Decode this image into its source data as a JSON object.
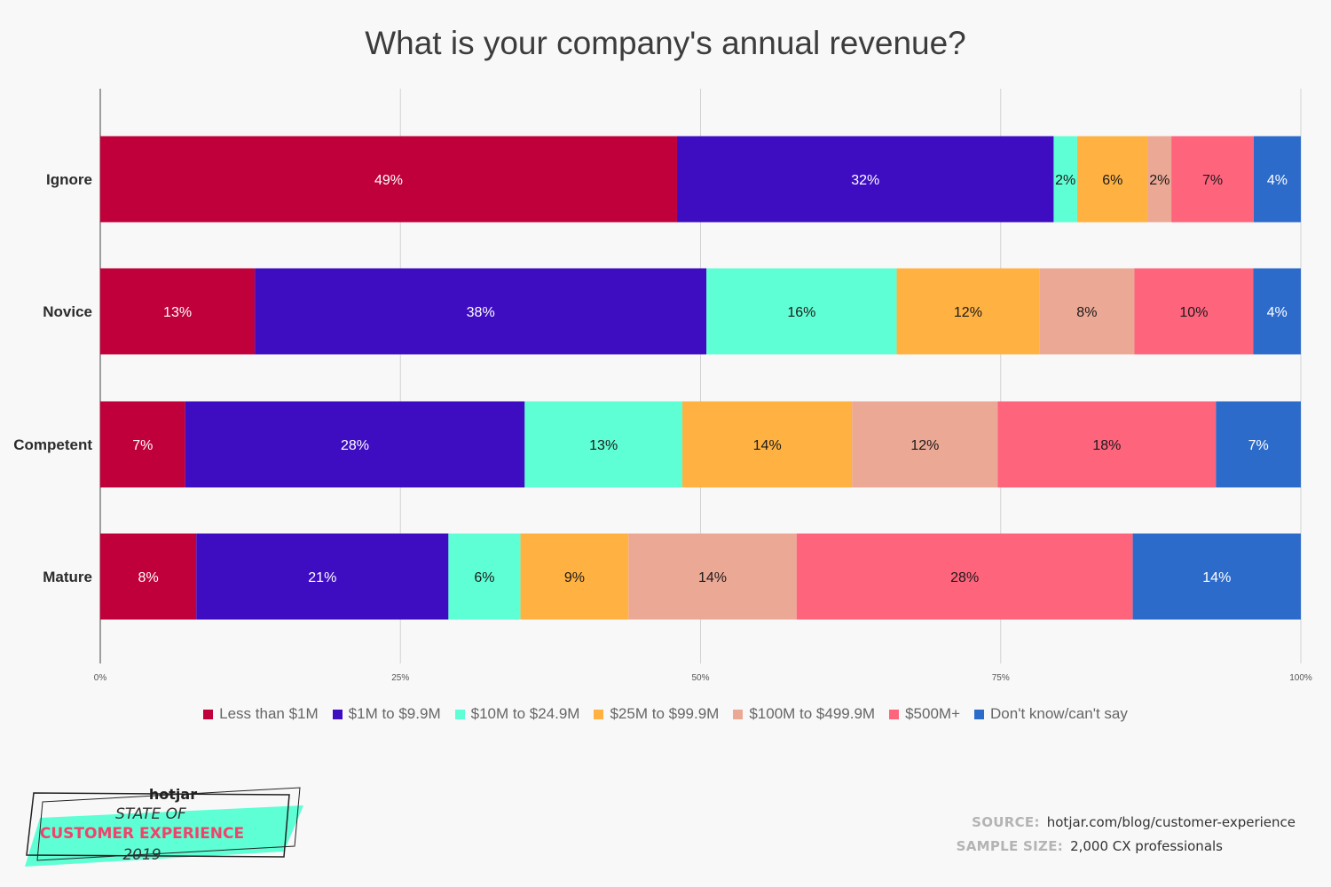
{
  "chart_data": {
    "type": "bar",
    "orientation": "horizontal",
    "stacked": true,
    "title": "What is your company's annual revenue?",
    "categories": [
      "Ignore",
      "Novice",
      "Competent",
      "Mature"
    ],
    "series": [
      {
        "name": "Less than $1M",
        "color": "#c0003a",
        "values": [
          49,
          13,
          7,
          8
        ],
        "labels": [
          "49%",
          "13%",
          "7%",
          "8%"
        ],
        "label_color": "#ffffff"
      },
      {
        "name": "$1M to $9.9M",
        "color": "#3e0dc2",
        "values": [
          32,
          38,
          28,
          21
        ],
        "labels": [
          "32%",
          "38%",
          "28%",
          "21%"
        ],
        "label_color": "#ffffff"
      },
      {
        "name": "$10M to $24.9M",
        "color": "#5fffd5",
        "values": [
          2,
          16,
          13,
          6
        ],
        "labels": [
          "2%",
          "16%",
          "13%",
          "6%"
        ],
        "label_color": "#1a1a1a"
      },
      {
        "name": "$25M to $99.9M",
        "color": "#ffb142",
        "values": [
          6,
          12,
          14,
          9
        ],
        "labels": [
          "6%",
          "12%",
          "14%",
          "9%"
        ],
        "label_color": "#1a1a1a"
      },
      {
        "name": "$100M to $499.9M",
        "color": "#eba895",
        "values": [
          2,
          8,
          12,
          14
        ],
        "labels": [
          "2%",
          "8%",
          "12%",
          "14%"
        ],
        "label_color": "#1a1a1a"
      },
      {
        "name": "$500M+",
        "color": "#ff647d",
        "values": [
          7,
          10,
          18,
          28
        ],
        "labels": [
          "7%",
          "10%",
          "18%",
          "28%"
        ],
        "label_color": "#1a1a1a"
      },
      {
        "name": "Don't know/can't say",
        "color": "#2d6bcb",
        "values": [
          4,
          4,
          7,
          14
        ],
        "labels": [
          "4%",
          "4%",
          "7%",
          "14%"
        ],
        "label_color": "#ffffff"
      }
    ],
    "xlim": [
      0,
      100
    ],
    "x_ticks": [
      "0%",
      "25%",
      "50%",
      "75%",
      "100%"
    ],
    "grid": true,
    "legend_position": "bottom"
  },
  "footer": {
    "source_label": "SOURCE:",
    "source_value": "hotjar.com/blog/customer-experience",
    "sample_label": "SAMPLE SIZE:",
    "sample_value": "2,000 CX professionals"
  },
  "badge": {
    "brand": "hotjar",
    "line1": "STATE OF",
    "line2": "CUSTOMER EXPERIENCE",
    "year": "2019"
  }
}
